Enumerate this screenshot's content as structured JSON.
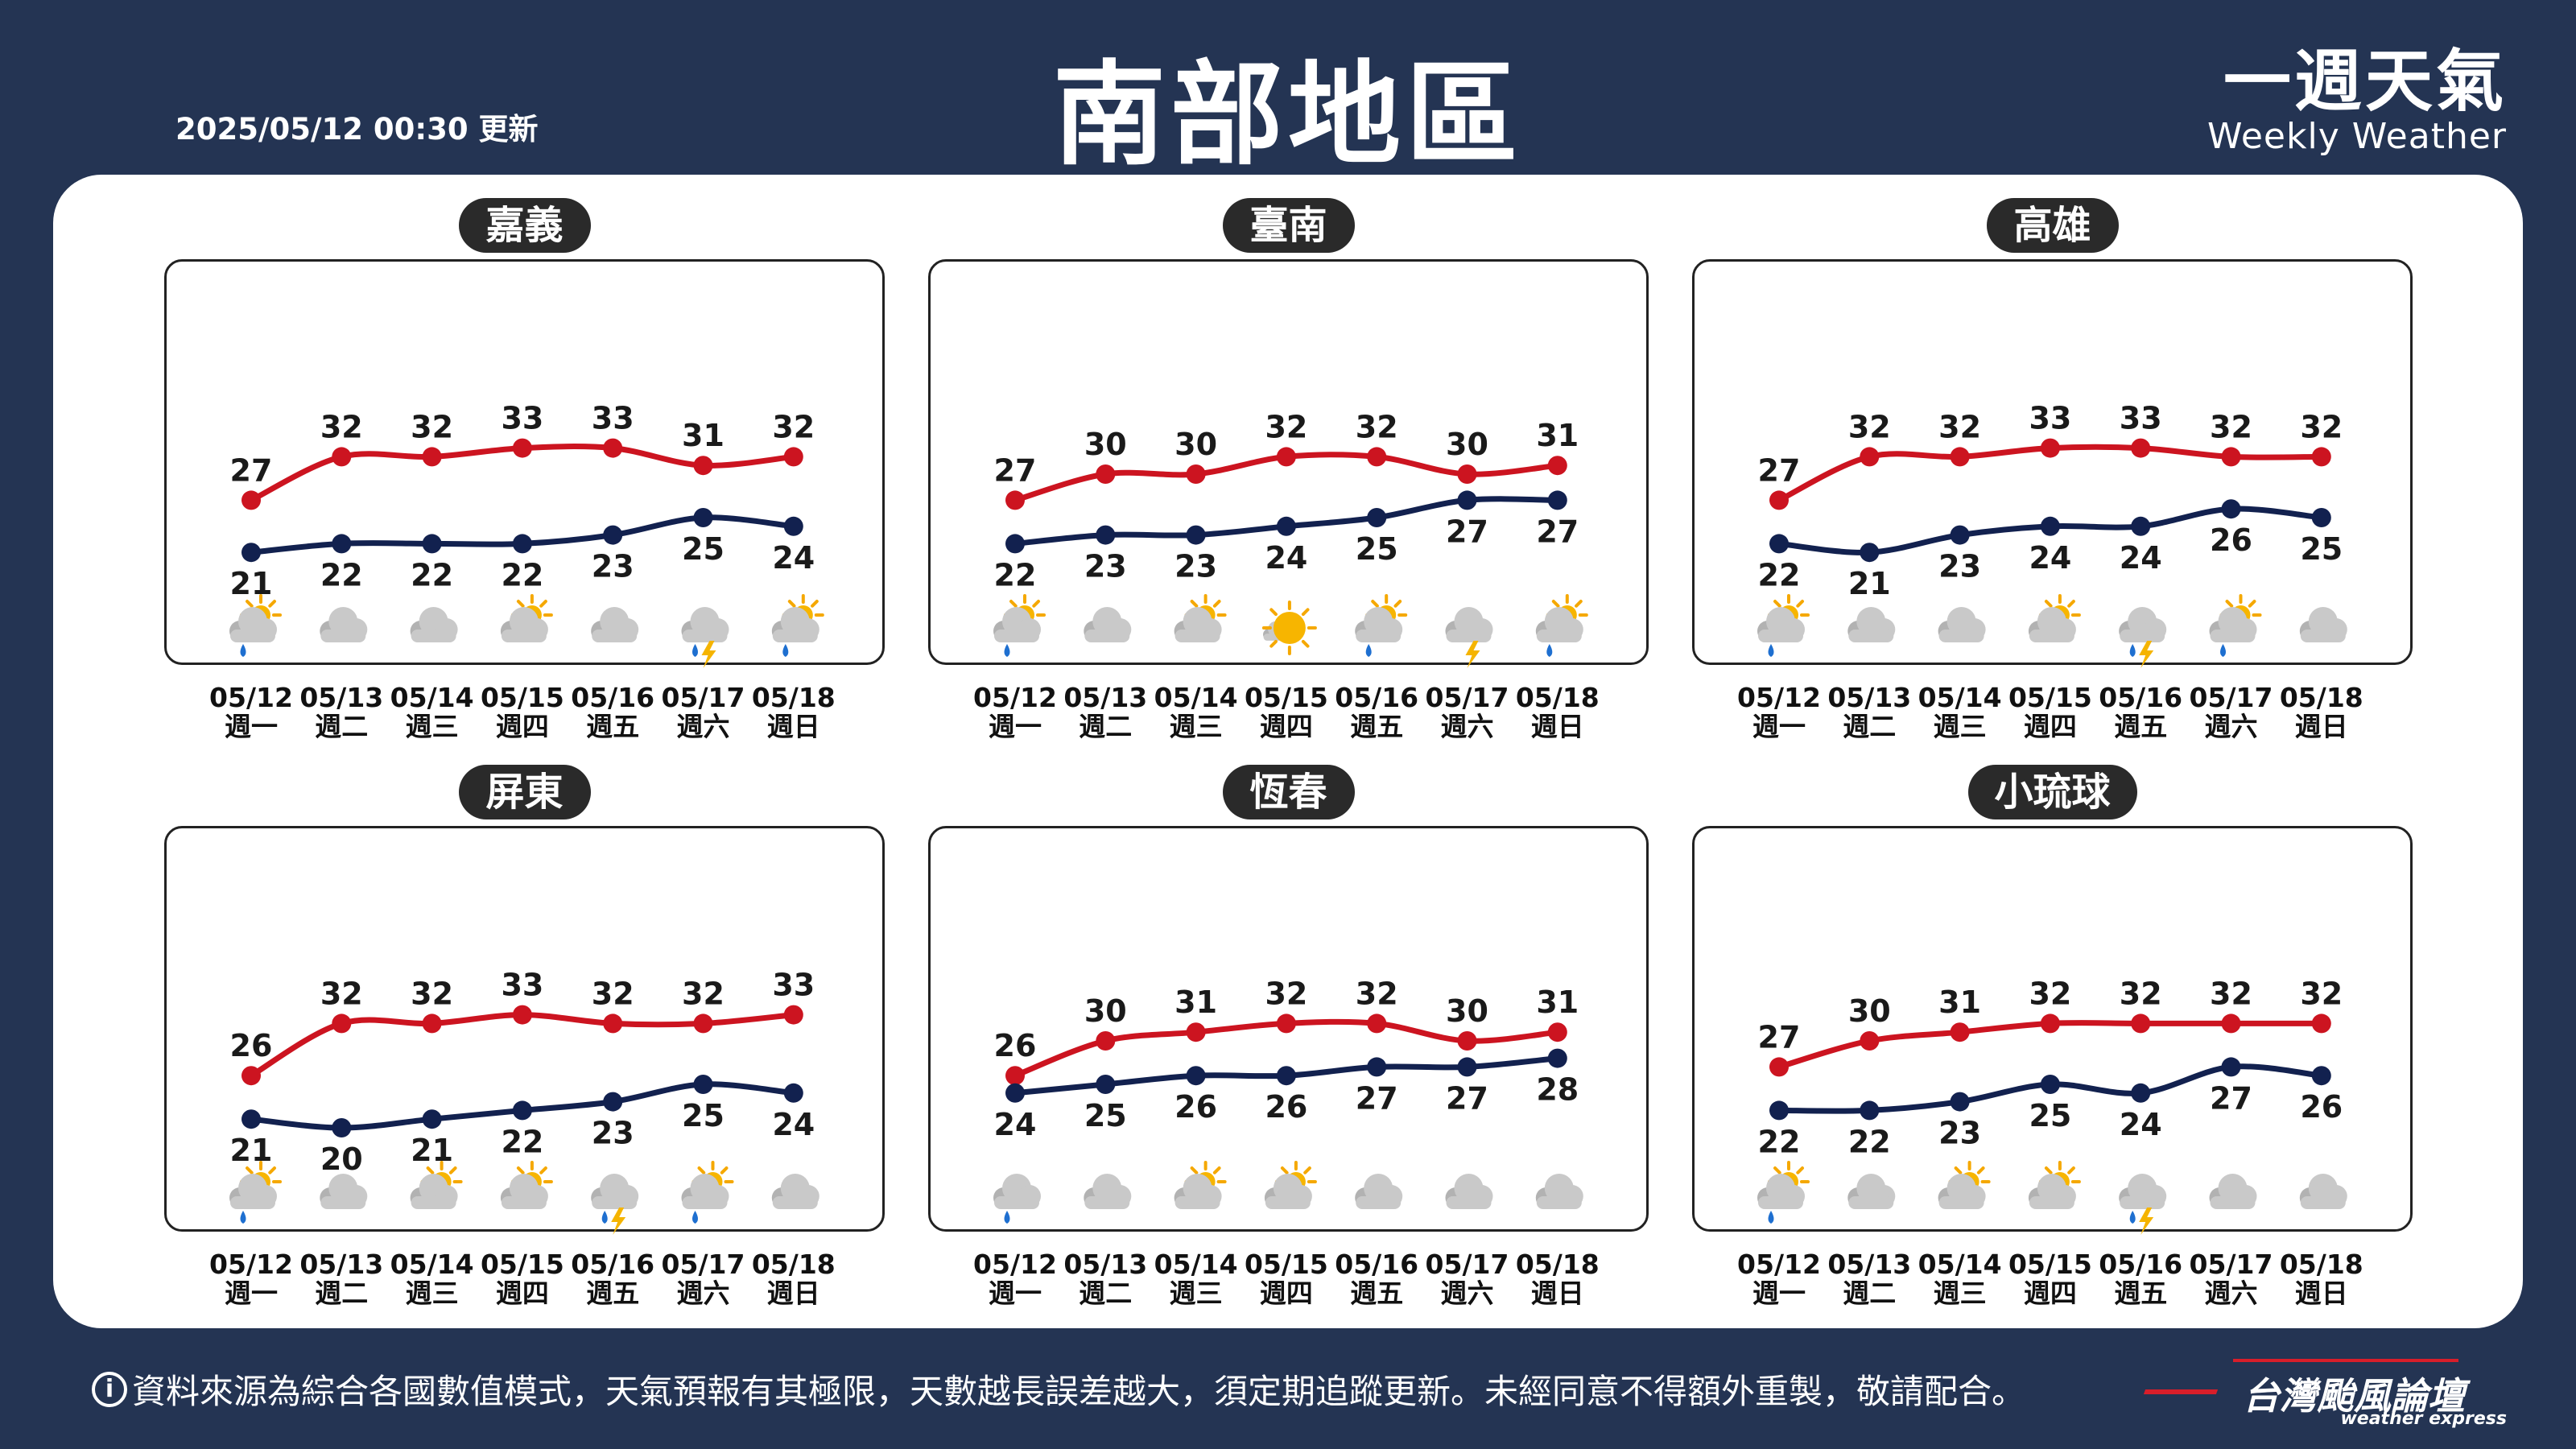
{
  "header": {
    "update_time": "2025/05/12 00:30 更新",
    "title": "南部地區",
    "brand_cn": "一週天氣",
    "brand_en": "Weekly Weather"
  },
  "footer": {
    "info_icon": "i",
    "note": "資料來源為綜合各國數值模式，天氣預報有其極限，天數越長誤差越大，須定期追蹤更新。未經同意不得額外重製，敬請配合。",
    "logo_cn": "台灣颱風論壇",
    "logo_en": "weather express"
  },
  "colors": {
    "background": "#243453",
    "high_line": "#cc1420",
    "low_line": "#12214f",
    "pill": "#2a2a2a"
  },
  "chart_data": [
    {
      "type": "line",
      "title": "嘉義",
      "dates": [
        "05/12",
        "05/13",
        "05/14",
        "05/15",
        "05/16",
        "05/17",
        "05/18"
      ],
      "weekdays": [
        "週一",
        "週二",
        "週三",
        "週四",
        "週五",
        "週六",
        "週日"
      ],
      "series": [
        {
          "name": "high",
          "values": [
            27,
            32,
            32,
            33,
            33,
            31,
            32
          ]
        },
        {
          "name": "low",
          "values": [
            21,
            22,
            22,
            22,
            23,
            25,
            24
          ]
        }
      ],
      "icons": [
        "sun-cloud-rain-icon",
        "cloud-icon",
        "cloud-icon",
        "sun-cloud-icon",
        "cloud-icon",
        "cloud-thunder-rain-icon",
        "sun-cloud-rain-icon"
      ]
    },
    {
      "type": "line",
      "title": "臺南",
      "dates": [
        "05/12",
        "05/13",
        "05/14",
        "05/15",
        "05/16",
        "05/17",
        "05/18"
      ],
      "weekdays": [
        "週一",
        "週二",
        "週三",
        "週四",
        "週五",
        "週六",
        "週日"
      ],
      "series": [
        {
          "name": "high",
          "values": [
            27,
            30,
            30,
            32,
            32,
            30,
            31
          ]
        },
        {
          "name": "low",
          "values": [
            22,
            23,
            23,
            24,
            25,
            27,
            27
          ]
        }
      ],
      "icons": [
        "sun-cloud-rain-icon",
        "cloud-icon",
        "sun-cloud-icon",
        "sun-icon",
        "sun-cloud-rain-icon",
        "cloud-thunder-icon",
        "sun-cloud-rain-icon"
      ]
    },
    {
      "type": "line",
      "title": "高雄",
      "dates": [
        "05/12",
        "05/13",
        "05/14",
        "05/15",
        "05/16",
        "05/17",
        "05/18"
      ],
      "weekdays": [
        "週一",
        "週二",
        "週三",
        "週四",
        "週五",
        "週六",
        "週日"
      ],
      "series": [
        {
          "name": "high",
          "values": [
            27,
            32,
            32,
            33,
            33,
            32,
            32
          ]
        },
        {
          "name": "low",
          "values": [
            22,
            21,
            23,
            24,
            24,
            26,
            25
          ]
        }
      ],
      "icons": [
        "sun-cloud-rain-icon",
        "cloud-icon",
        "cloud-icon",
        "sun-cloud-icon",
        "cloud-thunder-rain-icon",
        "sun-cloud-rain-icon",
        "cloud-icon"
      ]
    },
    {
      "type": "line",
      "title": "屏東",
      "dates": [
        "05/12",
        "05/13",
        "05/14",
        "05/15",
        "05/16",
        "05/17",
        "05/18"
      ],
      "weekdays": [
        "週一",
        "週二",
        "週三",
        "週四",
        "週五",
        "週六",
        "週日"
      ],
      "series": [
        {
          "name": "high",
          "values": [
            26,
            32,
            32,
            33,
            32,
            32,
            33
          ]
        },
        {
          "name": "low",
          "values": [
            21,
            20,
            21,
            22,
            23,
            25,
            24
          ]
        }
      ],
      "icons": [
        "sun-cloud-rain-icon",
        "cloud-icon",
        "sun-cloud-icon",
        "sun-cloud-icon",
        "cloud-thunder-rain-icon",
        "sun-cloud-rain-icon",
        "cloud-icon"
      ]
    },
    {
      "type": "line",
      "title": "恆春",
      "dates": [
        "05/12",
        "05/13",
        "05/14",
        "05/15",
        "05/16",
        "05/17",
        "05/18"
      ],
      "weekdays": [
        "週一",
        "週二",
        "週三",
        "週四",
        "週五",
        "週六",
        "週日"
      ],
      "series": [
        {
          "name": "high",
          "values": [
            26,
            30,
            31,
            32,
            32,
            30,
            31
          ]
        },
        {
          "name": "low",
          "values": [
            24,
            25,
            26,
            26,
            27,
            27,
            28
          ]
        }
      ],
      "icons": [
        "cloud-rain-icon",
        "cloud-icon",
        "sun-cloud-icon",
        "sun-cloud-icon",
        "cloud-icon",
        "cloud-icon",
        "cloud-icon"
      ]
    },
    {
      "type": "line",
      "title": "小琉球",
      "dates": [
        "05/12",
        "05/13",
        "05/14",
        "05/15",
        "05/16",
        "05/17",
        "05/18"
      ],
      "weekdays": [
        "週一",
        "週二",
        "週三",
        "週四",
        "週五",
        "週六",
        "週日"
      ],
      "series": [
        {
          "name": "high",
          "values": [
            27,
            30,
            31,
            32,
            32,
            32,
            32
          ]
        },
        {
          "name": "low",
          "values": [
            22,
            22,
            23,
            25,
            24,
            27,
            26
          ]
        }
      ],
      "icons": [
        "sun-cloud-rain-icon",
        "cloud-icon",
        "sun-cloud-icon",
        "sun-cloud-icon",
        "cloud-thunder-rain-icon",
        "cloud-icon",
        "cloud-icon"
      ]
    }
  ]
}
